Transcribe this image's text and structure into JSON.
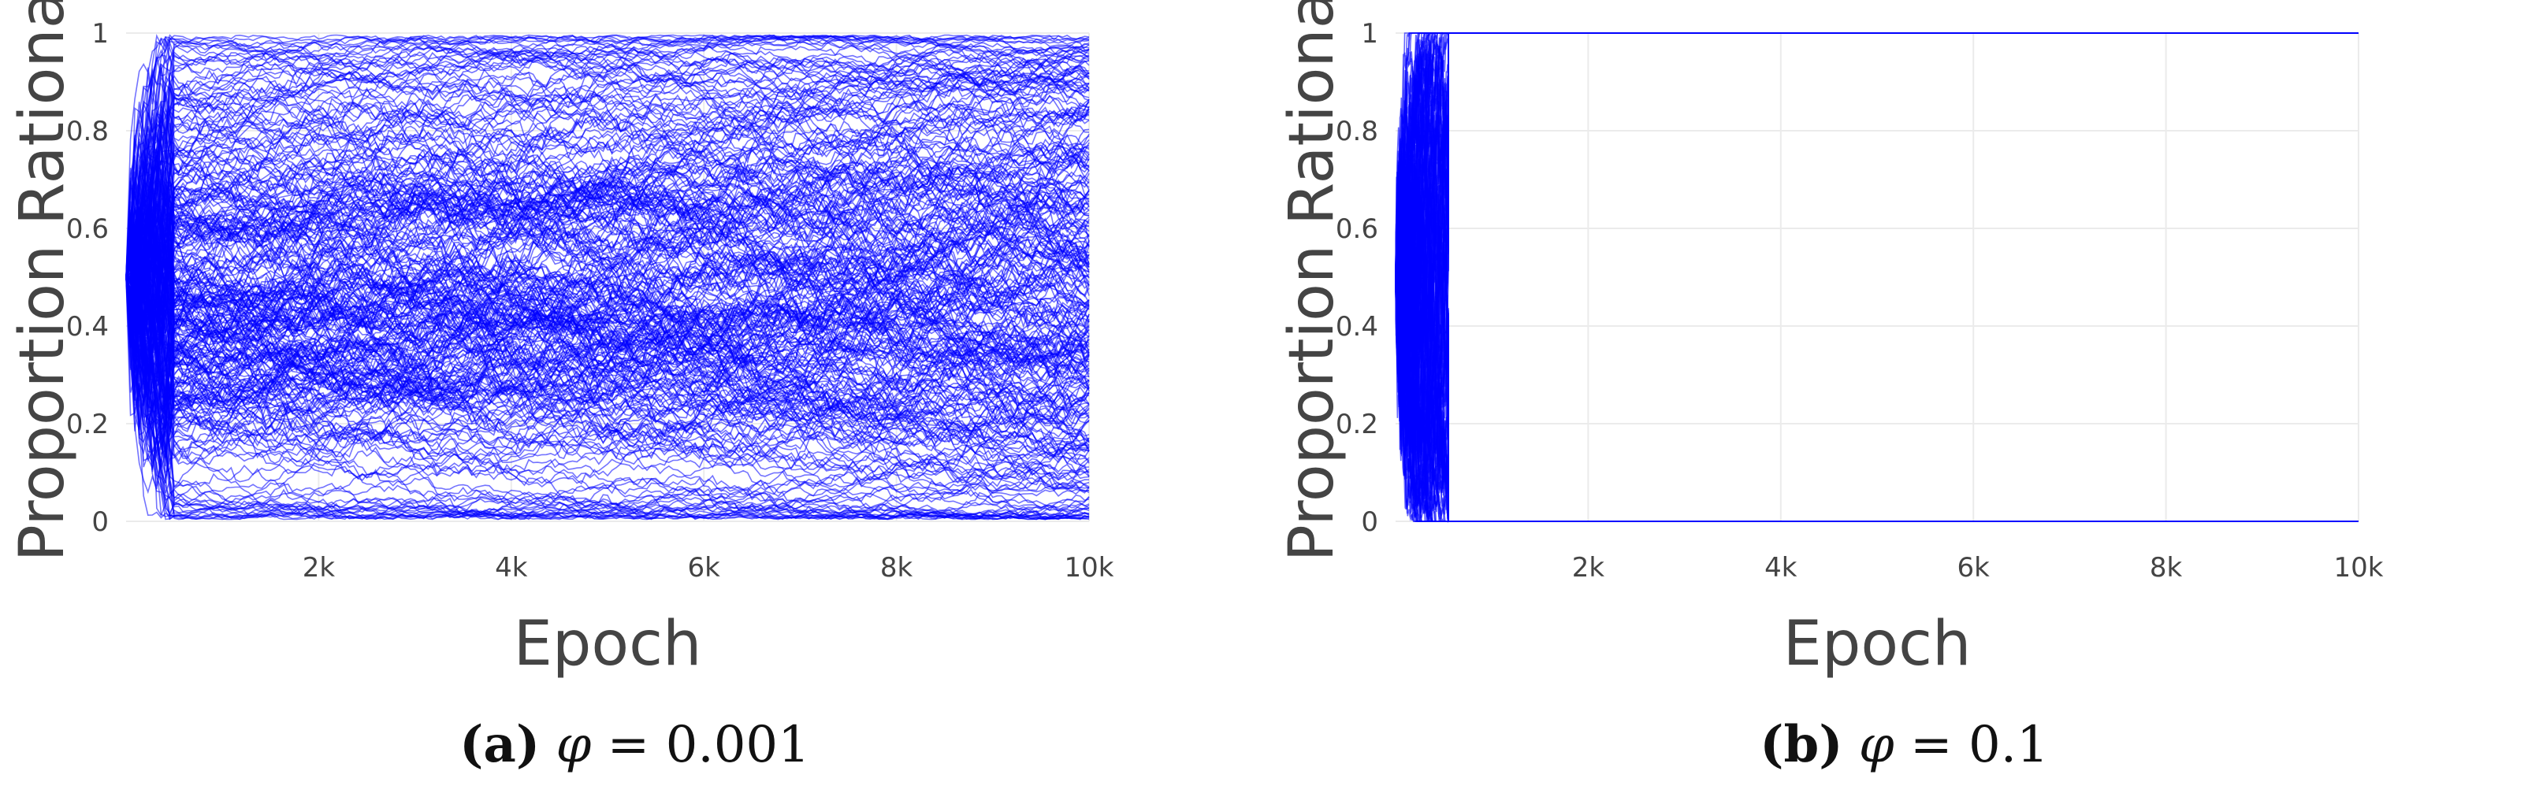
{
  "chart_data": [
    {
      "type": "line",
      "title": "",
      "xlabel": "Epoch",
      "ylabel": "Proportion Rational",
      "xlim": [
        0,
        10000
      ],
      "ylim": [
        0,
        1
      ],
      "x_ticks": [
        2000,
        4000,
        6000,
        8000,
        10000
      ],
      "x_tick_labels": [
        "2k",
        "4k",
        "6k",
        "8k",
        "10k"
      ],
      "y_ticks": [
        0,
        0.2,
        0.4,
        0.6,
        0.8,
        1
      ],
      "y_tick_labels": [
        "0",
        "0.2",
        "0.4",
        "0.6",
        "0.8",
        "1"
      ],
      "grid": true,
      "legend": "none",
      "line_color": "#0000ff",
      "series_count": 300,
      "behavior": "diffusive",
      "x_sample": [
        0,
        500,
        1000,
        2000,
        4000,
        6000,
        8000,
        10000
      ],
      "y_percentiles": {
        "p10": [
          0.5,
          0.12,
          0.08,
          0.06,
          0.05,
          0.05,
          0.04,
          0.04
        ],
        "p50": [
          0.5,
          0.5,
          0.5,
          0.5,
          0.5,
          0.5,
          0.5,
          0.5
        ],
        "p90": [
          0.5,
          0.88,
          0.92,
          0.94,
          0.95,
          0.95,
          0.96,
          0.96
        ]
      },
      "caption": {
        "tag": "(a)",
        "symbol": "φ",
        "equals": "=",
        "value": "0.001"
      }
    },
    {
      "type": "line",
      "title": "",
      "xlabel": "Epoch",
      "ylabel": "Proportion Rational",
      "xlim": [
        0,
        10000
      ],
      "ylim": [
        0,
        1
      ],
      "x_ticks": [
        2000,
        4000,
        6000,
        8000,
        10000
      ],
      "x_tick_labels": [
        "2k",
        "4k",
        "6k",
        "8k",
        "10k"
      ],
      "y_ticks": [
        0,
        0.2,
        0.4,
        0.6,
        0.8,
        1
      ],
      "y_tick_labels": [
        "0",
        "0.2",
        "0.4",
        "0.6",
        "0.8",
        "1"
      ],
      "grid": true,
      "legend": "none",
      "line_color": "#0000ff",
      "series_count": 150,
      "behavior": "absorbing",
      "absorb_epoch_max": 550,
      "absorbed_values": [
        0,
        1
      ],
      "x_sample": [
        0,
        100,
        200,
        300,
        400,
        550,
        1000,
        10000
      ],
      "y_range": {
        "min": [
          0.5,
          0,
          0,
          0,
          0,
          0,
          0,
          0
        ],
        "max": [
          0.5,
          1,
          1,
          1,
          1,
          1,
          1,
          1
        ]
      },
      "caption": {
        "tag": "(b)",
        "symbol": "φ",
        "equals": "=",
        "value": "0.1"
      }
    }
  ]
}
